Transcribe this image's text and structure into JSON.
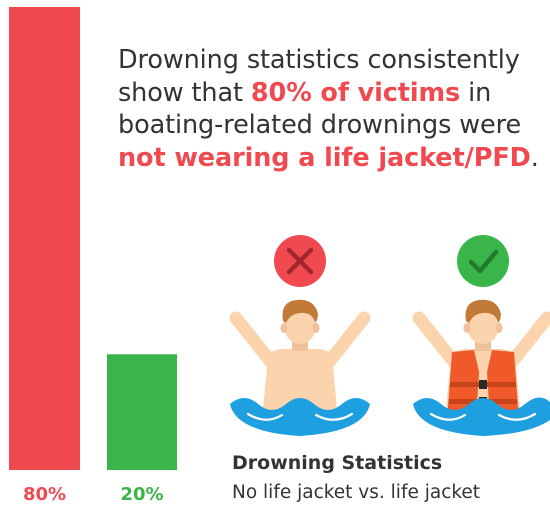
{
  "headline": {
    "part1": "Drowning statistics consistently show that ",
    "highlight1": "80% of victims",
    "part2": " in boating-related drownings were ",
    "highlight2": "not wearing a life jacket/PFD",
    "part3": "."
  },
  "caption": {
    "title": "Drowning Statistics",
    "subtitle": "No life jacket vs. life jacket"
  },
  "chart_data": {
    "type": "bar",
    "categories": [
      "No life jacket",
      "Life jacket"
    ],
    "values": [
      80,
      20
    ],
    "value_labels": [
      "80%",
      "20%"
    ],
    "colors": [
      "#f04a50",
      "#3ab54a"
    ],
    "ylim": [
      0,
      100
    ],
    "grid": false
  },
  "icons": {
    "no_jacket_mark": "red-cross-icon",
    "jacket_mark": "green-check-icon",
    "no_jacket_figure": "swimmer-no-jacket-icon",
    "jacket_figure": "swimmer-life-jacket-icon"
  },
  "colors": {
    "red": "#f04a50",
    "green": "#3ab54a",
    "water": "#1e9fe0",
    "skin": "#fbd3ad",
    "hair": "#c27a38",
    "vest": "#f05a2a"
  }
}
